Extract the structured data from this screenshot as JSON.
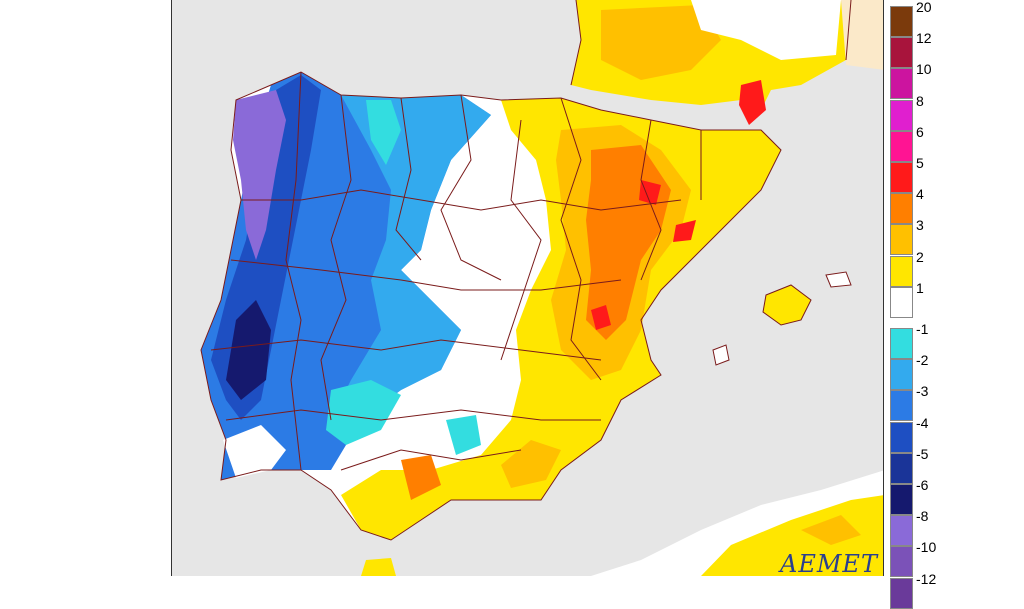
{
  "map": {
    "name": "Iberian Peninsula temperature anomaly map",
    "logo_text": "AEMET",
    "colors": {
      "sea": "#e6e6e6",
      "france_outside": "#fbe9c9",
      "borders": "#7a1b1b",
      "coast": "#7a1b1b"
    }
  },
  "legend": {
    "items": [
      {
        "label": "20",
        "color": "#7b3a0c"
      },
      {
        "label": "12",
        "color": "#a8143c"
      },
      {
        "label": "10",
        "color": "#cc149f"
      },
      {
        "label": "8",
        "color": "#e01fcf"
      },
      {
        "label": "6",
        "color": "#ff1493"
      },
      {
        "label": "5",
        "color": "#ff1a1a"
      },
      {
        "label": "4",
        "color": "#ff7f00"
      },
      {
        "label": "3",
        "color": "#ffc000"
      },
      {
        "label": "2",
        "color": "#ffe600"
      },
      {
        "label": "1",
        "color": "#ffffff"
      },
      {
        "label": "-1",
        "color": "#33dde0"
      },
      {
        "label": "-2",
        "color": "#33aaee"
      },
      {
        "label": "-3",
        "color": "#2c7be5"
      },
      {
        "label": "-4",
        "color": "#1e4fc2"
      },
      {
        "label": "-5",
        "color": "#1a3498"
      },
      {
        "label": "-6",
        "color": "#15196e"
      },
      {
        "label": "-8",
        "color": "#8a6ad8"
      },
      {
        "label": "-10",
        "color": "#7b52b8"
      },
      {
        "label": "-12",
        "color": "#6a3a9a"
      }
    ]
  }
}
